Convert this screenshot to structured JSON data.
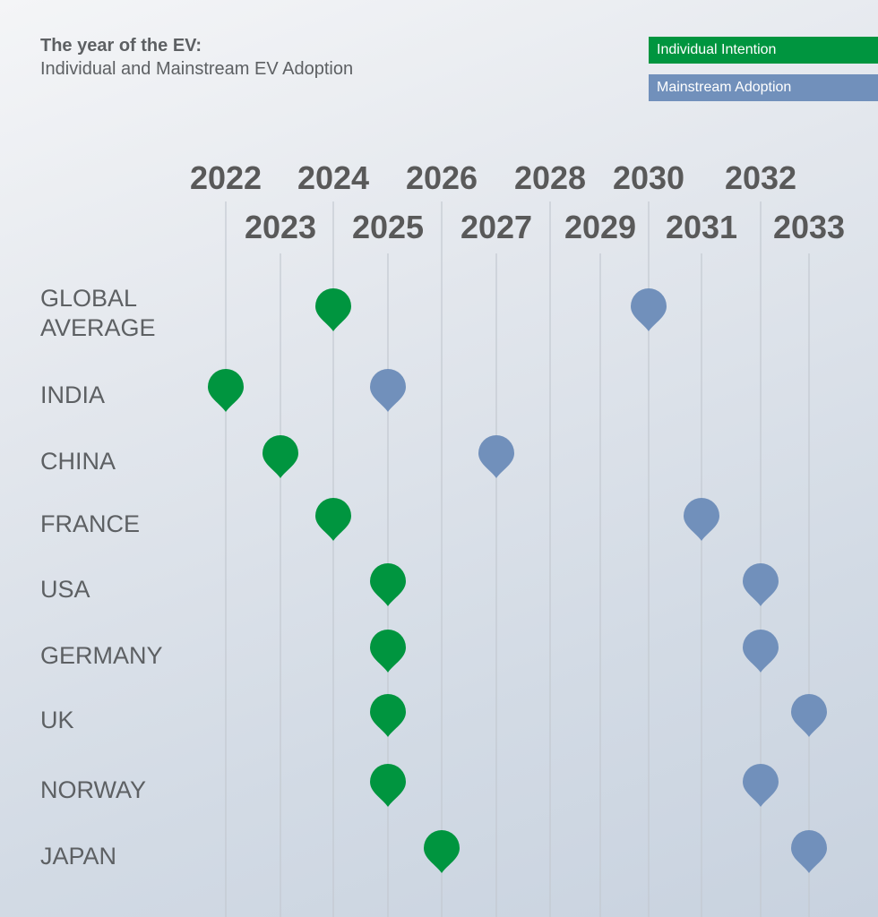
{
  "title": "The year of the EV:",
  "subtitle": "Individual and Mainstream EV Adoption",
  "legend": {
    "individual": "Individual Intention",
    "mainstream": "Mainstream Adoption"
  },
  "colors": {
    "individual": "#00953f",
    "mainstream": "#7190bb",
    "text": "#5d6063",
    "gridline": "#c3c9d0"
  },
  "chart_data": {
    "type": "scatter",
    "title": "The year of the EV:",
    "subtitle": "Individual and Mainstream EV Adoption",
    "x": [
      2022,
      2023,
      2024,
      2025,
      2026,
      2027,
      2028,
      2029,
      2030,
      2031,
      2032,
      2033
    ],
    "tick_labels": [
      "2022",
      "2023",
      "2024",
      "2025",
      "2026",
      "2027",
      "2028",
      "2029",
      "2030",
      "2031",
      "2032",
      "2033"
    ],
    "categories": [
      "GLOBAL AVERAGE",
      "INDIA",
      "CHINA",
      "FRANCE",
      "USA",
      "GERMANY",
      "UK",
      "NORWAY",
      "JAPAN"
    ],
    "series": [
      {
        "name": "Individual Intention",
        "values": [
          2024,
          2022,
          2023,
          2024,
          2025,
          2025,
          2025,
          2025,
          2026
        ]
      },
      {
        "name": "Mainstream Adoption",
        "values": [
          2030,
          2025,
          2027,
          2031,
          2032,
          2032,
          2033,
          2032,
          2033
        ]
      }
    ],
    "xlim": [
      2022,
      2033
    ],
    "grid": true,
    "legend_position": "top-right"
  }
}
